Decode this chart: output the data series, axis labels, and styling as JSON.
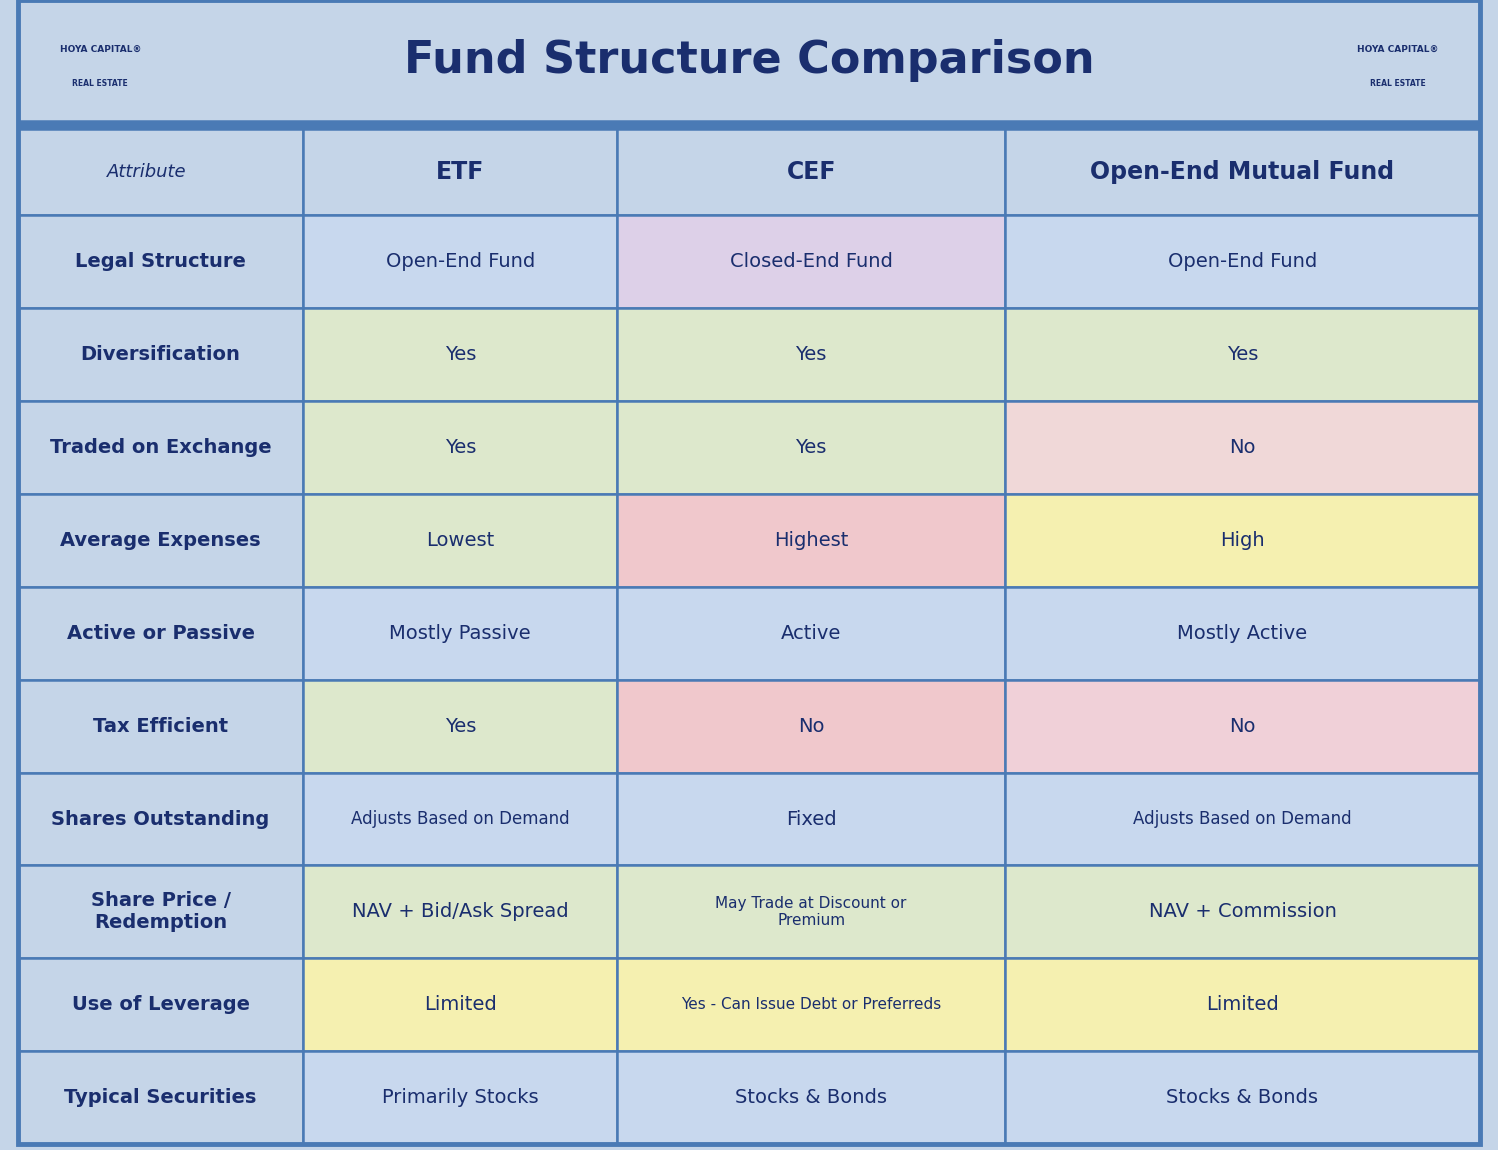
{
  "title": "Fund Structure Comparison",
  "title_color": "#1a2e6e",
  "bg_color": "#c5d5e8",
  "header_bg": "#c5d5e8",
  "border_color": "#4a7ab5",
  "col_header_color": "#1a2e6e",
  "row_label_color": "#1a2e6e",
  "cell_text_color": "#1a2e6e",
  "columns": [
    "Attribute",
    "ETF",
    "CEF",
    "Open-End Mutual Fund"
  ],
  "rows": [
    {
      "label": "Legal Structure",
      "values": [
        "Open-End Fund",
        "Closed-End Fund",
        "Open-End Fund"
      ],
      "colors": [
        "#c8d8ee",
        "#ddd0e8",
        "#c8d8ee"
      ],
      "label_bg": "#c5d5e8"
    },
    {
      "label": "Diversification",
      "values": [
        "Yes",
        "Yes",
        "Yes"
      ],
      "colors": [
        "#dde8cc",
        "#dde8cc",
        "#dde8cc"
      ],
      "label_bg": "#c5d5e8"
    },
    {
      "label": "Traded on Exchange",
      "values": [
        "Yes",
        "Yes",
        "No"
      ],
      "colors": [
        "#dde8cc",
        "#dde8cc",
        "#f0d8d8"
      ],
      "label_bg": "#c5d5e8"
    },
    {
      "label": "Average Expenses",
      "values": [
        "Lowest",
        "Highest",
        "High"
      ],
      "colors": [
        "#dde8cc",
        "#f0c8cc",
        "#f5f0b0"
      ],
      "label_bg": "#c5d5e8"
    },
    {
      "label": "Active or Passive",
      "values": [
        "Mostly Passive",
        "Active",
        "Mostly Active"
      ],
      "colors": [
        "#c8d8ee",
        "#c8d8ee",
        "#c8d8ee"
      ],
      "label_bg": "#c5d5e8"
    },
    {
      "label": "Tax Efficient",
      "values": [
        "Yes",
        "No",
        "No"
      ],
      "colors": [
        "#dde8cc",
        "#f0c8cc",
        "#f0d0d8"
      ],
      "label_bg": "#c5d5e8"
    },
    {
      "label": "Shares Outstanding",
      "values": [
        "Adjusts Based on Demand",
        "Fixed",
        "Adjusts Based on Demand"
      ],
      "colors": [
        "#c8d8ee",
        "#c8d8ee",
        "#c8d8ee"
      ],
      "label_bg": "#c5d5e8"
    },
    {
      "label": "Share Price /\nRedemption",
      "values": [
        "NAV + Bid/Ask Spread",
        "May Trade at Discount or\nPremium",
        "NAV + Commission"
      ],
      "colors": [
        "#dde8cc",
        "#dde8cc",
        "#dde8cc"
      ],
      "label_bg": "#c5d5e8"
    },
    {
      "label": "Use of Leverage",
      "values": [
        "Limited",
        "Yes - Can Issue Debt or Preferreds",
        "Limited"
      ],
      "colors": [
        "#f5f0b0",
        "#f5f0b0",
        "#f5f0b0"
      ],
      "label_bg": "#c5d5e8"
    },
    {
      "label": "Typical Securities",
      "values": [
        "Primarily Stocks",
        "Stocks & Bonds",
        "Stocks & Bonds"
      ],
      "colors": [
        "#c8d8ee",
        "#c8d8ee",
        "#c8d8ee"
      ],
      "label_bg": "#c5d5e8"
    }
  ]
}
